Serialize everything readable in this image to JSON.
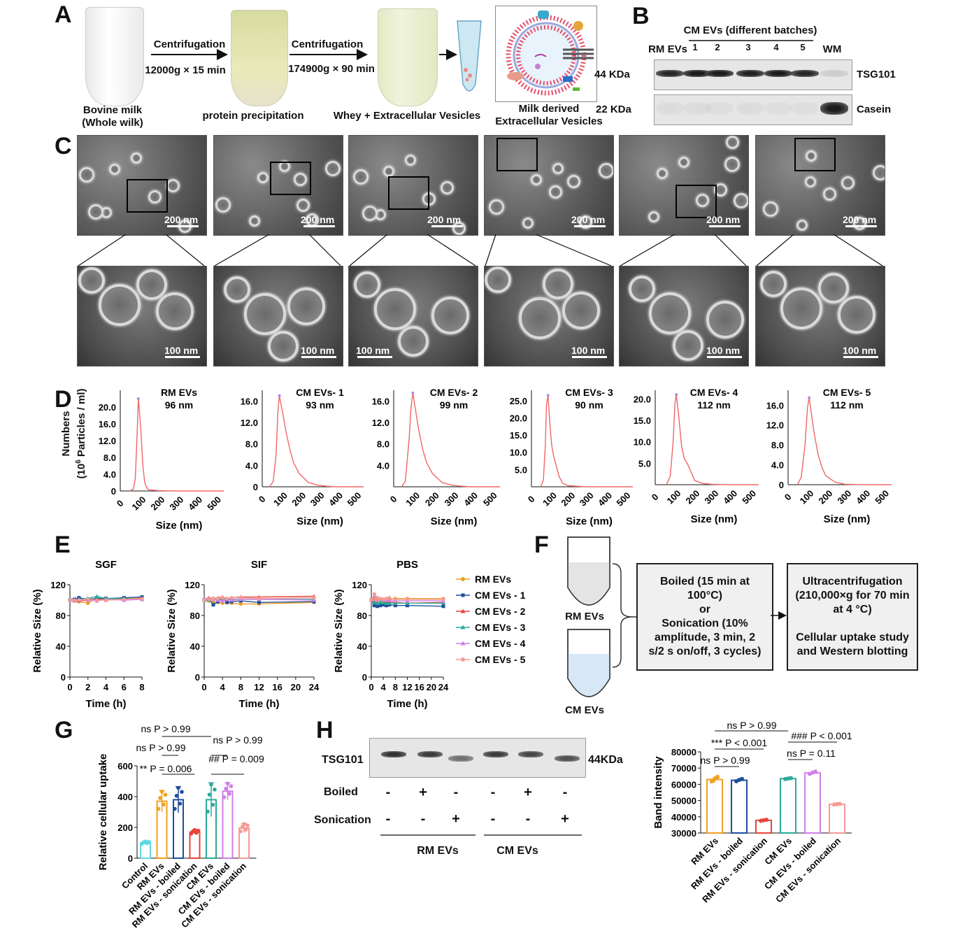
{
  "panels": {
    "A": "A",
    "B": "B",
    "C": "C",
    "D": "D",
    "E": "E",
    "F": "F",
    "G": "G",
    "H": "H"
  },
  "panel_a": {
    "step1_title": "Centrifugation",
    "step1_cond": "12000g × 15 min",
    "step2_title": "Centrifugation",
    "step2_cond": "174900g × 90 min",
    "tube1_label_1": "Bovine milk",
    "tube1_label_2": "(Whole wilk)",
    "tube2_label": "protein precipitation",
    "tube3_label": "Whey + Extracellular  Vesicles",
    "ev_label_1": "Milk derived",
    "ev_label_2": "Extracellular  Vesicles"
  },
  "panel_b": {
    "header": "CM EVs (different batches)",
    "lanes": [
      "RM EVs",
      "1",
      "2",
      "3",
      "4",
      "5",
      "WM"
    ],
    "rows": [
      {
        "kda": "44 KDa",
        "protein": "TSG101",
        "intensity": [
          0.9,
          0.95,
          0.95,
          0.92,
          0.95,
          0.9,
          0.12
        ]
      },
      {
        "kda": "22 KDa",
        "protein": "Casein",
        "intensity": [
          0.05,
          0.05,
          0.04,
          0.05,
          0.04,
          0.04,
          0.95
        ]
      }
    ]
  },
  "panel_c": {
    "scale_top": "200 nm",
    "scale_zoom": "100 nm"
  },
  "panel_d": {
    "ylabel": "Numbers (10⁶ Particles / ml)",
    "ylabel_1": "Numbers",
    "ylabel_2": "(10",
    "ylabel_sup": "6",
    "ylabel_3": " Particles / ml)",
    "xlabel": "Size (nm)",
    "xticks": [
      "0",
      "100",
      "200",
      "300",
      "400",
      "500"
    ]
  },
  "panel_e_titles": [
    "SGF",
    "SIF",
    "PBS"
  ],
  "panel_e_ylabel": "Relative Size (%)",
  "panel_e_xlabel": "Time (h)",
  "panel_f": {
    "tube1": "RM EVs",
    "tube2": "CM EVs",
    "box1": "Boiled (15 min at\n100°C)\nor\nSonication (10%\namplitude, 3 min, 2\ns/2 s on/off, 3 cycles)",
    "box2": "Ultracentrifugation\n(210,000×g for 70 min\nat 4 °C)\n\nCellular uptake study\nand Western blotting"
  },
  "panel_g_annotations": [
    {
      "label": "ns P > 0.99"
    },
    {
      "label": "ns P > 0.99"
    },
    {
      "label": "ns P > 0.99"
    },
    {
      "label": "** P = 0.006"
    },
    {
      "label": "## P = 0.009"
    }
  ],
  "panel_h": {
    "protein": "TSG101",
    "kda": "44KDa",
    "row1_label": "Boiled",
    "row2_label": "Sonication",
    "boiled": [
      "-",
      "+",
      "-",
      "-",
      "+",
      "-"
    ],
    "sonication": [
      "-",
      "-",
      "+",
      "-",
      "-",
      "+"
    ],
    "group1": "RM EVs",
    "group2": "CM EVs",
    "band_intensity_rel": [
      0.85,
      0.8,
      0.55,
      0.8,
      0.75,
      0.7
    ],
    "annotations": [
      {
        "label": "ns P > 0.99"
      },
      {
        "label": "*** P < 0.001"
      },
      {
        "label": "ns P > 0.99"
      },
      {
        "label": "### P < 0.001"
      },
      {
        "label": "ns P = 0.11"
      }
    ]
  },
  "chart_data": [
    {
      "type": "line",
      "panel": "D",
      "name": "RM EVs",
      "title": "RM EVs",
      "peak_label": "96 nm",
      "xlabel": "Size (nm)",
      "ylabel": "Numbers (10^6 Particles / ml)",
      "xlim": [
        0,
        550
      ],
      "ylim": [
        0,
        24
      ],
      "yticks": [
        "0",
        "4.0",
        "8.0",
        "12.0",
        "16.0",
        "20.0"
      ],
      "ytick_values": [
        0,
        4,
        8,
        12,
        16,
        20
      ],
      "x": [
        50,
        70,
        80,
        90,
        96,
        100,
        110,
        120,
        130,
        140,
        150,
        200,
        300,
        400,
        500,
        550
      ],
      "y": [
        0,
        0.5,
        3,
        14,
        22,
        20,
        14,
        6,
        2,
        0.8,
        0.3,
        0.1,
        0,
        0,
        0,
        0
      ]
    },
    {
      "type": "line",
      "panel": "D",
      "name": "CM EVs- 1",
      "title": "CM EVs- 1",
      "peak_label": "93 nm",
      "xlabel": "Size (nm)",
      "ylabel": "Numbers (10^6 Particles / ml)",
      "xlim": [
        0,
        550
      ],
      "ylim": [
        0,
        18
      ],
      "yticks": [
        "0",
        "4.0",
        "8.0",
        "12.0",
        "16.0"
      ],
      "ytick_values": [
        0,
        4,
        8,
        12,
        16
      ],
      "x": [
        40,
        60,
        75,
        85,
        93,
        110,
        130,
        150,
        170,
        200,
        250,
        300,
        350,
        400,
        500,
        550
      ],
      "y": [
        0,
        1,
        6,
        14,
        17,
        14,
        10,
        7,
        4.5,
        2.5,
        0.8,
        0.3,
        0.1,
        0,
        0,
        0
      ]
    },
    {
      "type": "line",
      "panel": "D",
      "name": "CM EVs- 2",
      "title": "CM EVs- 2",
      "peak_label": "99 nm",
      "xlabel": "Size (nm)",
      "ylabel": "Numbers (10^6 Particles / ml)",
      "xlim": [
        0,
        550
      ],
      "ylim": [
        0,
        18
      ],
      "yticks": [
        "4.0",
        "8.0",
        "12.0",
        "16.0"
      ],
      "ytick_values": [
        4,
        8,
        12,
        16
      ],
      "x": [
        40,
        60,
        80,
        90,
        99,
        110,
        130,
        150,
        170,
        200,
        250,
        300,
        350,
        400,
        500,
        550
      ],
      "y": [
        0,
        1,
        9,
        15,
        17.5,
        15,
        10.5,
        7,
        4.5,
        2.5,
        0.8,
        0.3,
        0.1,
        0,
        0,
        0
      ]
    },
    {
      "type": "line",
      "panel": "D",
      "name": "CM EVs- 3",
      "title": "CM EVs- 3",
      "peak_label": "90 nm",
      "xlabel": "Size (nm)",
      "ylabel": "Numbers (10^6 Particles / ml)",
      "xlim": [
        0,
        550
      ],
      "ylim": [
        0,
        28
      ],
      "yticks": [
        "5.0",
        "10.0",
        "15.0",
        "20.0",
        "25.0"
      ],
      "ytick_values": [
        5,
        10,
        15,
        20,
        25
      ],
      "x": [
        50,
        65,
        75,
        82,
        90,
        100,
        110,
        120,
        130,
        140,
        150,
        170,
        200,
        300,
        400,
        550
      ],
      "y": [
        0,
        2,
        12,
        24,
        26.5,
        18,
        12,
        9,
        7,
        5,
        3,
        1,
        0.3,
        0,
        0,
        0
      ]
    },
    {
      "type": "line",
      "panel": "D",
      "name": "CM EVs- 4",
      "title": "CM EVs- 4",
      "peak_label": "112 nm",
      "xlabel": "Size (nm)",
      "ylabel": "Numbers (10^6 Particles / ml)",
      "xlim": [
        0,
        550
      ],
      "ylim": [
        0,
        22
      ],
      "yticks": [
        "5.0",
        "10.0",
        "15.0",
        "20.0"
      ],
      "ytick_values": [
        5,
        10,
        15,
        20
      ],
      "x": [
        60,
        80,
        95,
        105,
        112,
        125,
        140,
        155,
        170,
        190,
        210,
        250,
        300,
        400,
        550
      ],
      "y": [
        0,
        2,
        10,
        19,
        21,
        16,
        9,
        6,
        5,
        3,
        1,
        0.3,
        0.1,
        0,
        0
      ]
    },
    {
      "type": "line",
      "panel": "D",
      "name": "CM EVs- 5",
      "title": "CM EVs- 5",
      "peak_label": "112 nm",
      "xlabel": "Size (nm)",
      "ylabel": "Numbers (10^6 Particles / ml)",
      "xlim": [
        0,
        550
      ],
      "ylim": [
        0,
        19
      ],
      "yticks": [
        "0",
        "4.0",
        "8.0",
        "12.0",
        "16.0"
      ],
      "ytick_values": [
        0,
        4,
        8,
        12,
        16
      ],
      "x": [
        50,
        70,
        90,
        103,
        112,
        125,
        140,
        160,
        180,
        200,
        250,
        300,
        400,
        550
      ],
      "y": [
        0,
        1.5,
        8,
        15.5,
        17.5,
        14,
        10,
        6,
        3.5,
        1.8,
        0.5,
        0.1,
        0,
        0
      ]
    },
    {
      "type": "line",
      "panel": "E",
      "title": "SGF",
      "xlabel": "Time (h)",
      "ylabel": "Relative Size (%)",
      "xlim": [
        0,
        8
      ],
      "ylim": [
        0,
        120
      ],
      "xticks": [
        0,
        2,
        4,
        6,
        8
      ],
      "yticks": [
        0,
        40,
        80,
        120
      ],
      "grid": false,
      "x": [
        0,
        0.5,
        1,
        2,
        3,
        4,
        6,
        8
      ],
      "series": [
        {
          "name": "RM EVs",
          "values": [
            100,
            99,
            98,
            96,
            103,
            101,
            102,
            103
          ]
        },
        {
          "name": "CM EVs - 1",
          "values": [
            100,
            101,
            103,
            101,
            102,
            102,
            103,
            104
          ]
        },
        {
          "name": "CM EVs - 2",
          "values": [
            100,
            100,
            99,
            100,
            101,
            100,
            101,
            102
          ]
        },
        {
          "name": "CM EVs - 3",
          "values": [
            100,
            100,
            101,
            102,
            105,
            102,
            102,
            101
          ]
        },
        {
          "name": "CM EVs - 4",
          "values": [
            100,
            99,
            101,
            100,
            99,
            101,
            100,
            101
          ]
        },
        {
          "name": "CM EVs - 5",
          "values": [
            100,
            100,
            100,
            101,
            100,
            100,
            101,
            102
          ]
        }
      ]
    },
    {
      "type": "line",
      "panel": "E",
      "title": "SIF",
      "xlabel": "Time (h)",
      "ylabel": "Relative Size (%)",
      "xlim": [
        0,
        24
      ],
      "ylim": [
        0,
        120
      ],
      "xticks": [
        0,
        4,
        8,
        12,
        16,
        20,
        24
      ],
      "yticks": [
        0,
        40,
        80,
        120
      ],
      "grid": false,
      "x": [
        0,
        1,
        2,
        3,
        4,
        5,
        6,
        8,
        12,
        24
      ],
      "series": [
        {
          "name": "RM EVs",
          "values": [
            100,
            99,
            98,
            97,
            96,
            97,
            96,
            95,
            95,
            97
          ]
        },
        {
          "name": "CM EVs - 1",
          "values": [
            100,
            101,
            94,
            98,
            102,
            97,
            98,
            99,
            97,
            98
          ]
        },
        {
          "name": "CM EVs - 2",
          "values": [
            100,
            103,
            102,
            103,
            104,
            102,
            103,
            104,
            104,
            105
          ]
        },
        {
          "name": "CM EVs - 3",
          "values": [
            100,
            100,
            103,
            100,
            102,
            102,
            101,
            101,
            101,
            101
          ]
        },
        {
          "name": "CM EVs - 4",
          "values": [
            100,
            102,
            101,
            100,
            99,
            101,
            100,
            101,
            101,
            100
          ]
        },
        {
          "name": "CM EVs - 5",
          "values": [
            100,
            101,
            102,
            102,
            103,
            102,
            103,
            103,
            102,
            103
          ]
        }
      ]
    },
    {
      "type": "line",
      "panel": "E",
      "title": "PBS",
      "xlabel": "Time (h)",
      "ylabel": "Relative Size (%)",
      "xlim": [
        0,
        24
      ],
      "ylim": [
        0,
        120
      ],
      "xticks": [
        0,
        4,
        8,
        12,
        16,
        20,
        24
      ],
      "yticks": [
        0,
        40,
        80,
        120
      ],
      "grid": false,
      "x": [
        0,
        1,
        2,
        3,
        4,
        5,
        6,
        8,
        12,
        24
      ],
      "series": [
        {
          "name": "RM EVs",
          "values": [
            100,
            102,
            101,
            100,
            101,
            102,
            101,
            102,
            102,
            102
          ]
        },
        {
          "name": "CM EVs - 1",
          "values": [
            100,
            93,
            92,
            93,
            94,
            93,
            94,
            93,
            93,
            92
          ]
        },
        {
          "name": "CM EVs - 2",
          "values": [
            100,
            98,
            97,
            97,
            98,
            97,
            98,
            97,
            96,
            97
          ]
        },
        {
          "name": "CM EVs - 3",
          "values": [
            100,
            97,
            96,
            97,
            97,
            96,
            96,
            96,
            96,
            96
          ]
        },
        {
          "name": "CM EVs - 4",
          "values": [
            100,
            105,
            101,
            102,
            100,
            101,
            100,
            99,
            99,
            99
          ]
        },
        {
          "name": "CM EVs - 5",
          "values": [
            100,
            108,
            103,
            102,
            101,
            102,
            103,
            101,
            101,
            101
          ]
        }
      ]
    },
    {
      "type": "bar",
      "panel": "G",
      "ylabel": "Relative cellular uptake",
      "ylim": [
        0,
        600
      ],
      "yticks": [
        0,
        200,
        400,
        600
      ],
      "categories": [
        "Control",
        "RM EVs",
        "RM EVs - boiled",
        "RM EVs - sonication",
        "CM EVs",
        "CM EVs - boiled",
        "CM EVs - sonication"
      ],
      "values": [
        100,
        370,
        380,
        170,
        380,
        435,
        195
      ],
      "errors": [
        10,
        70,
        85,
        15,
        110,
        55,
        30
      ]
    },
    {
      "type": "bar",
      "panel": "H",
      "ylabel": "Band intensity",
      "ylim": [
        30000,
        80000
      ],
      "yticks": [
        30000,
        40000,
        50000,
        60000,
        70000,
        80000
      ],
      "categories": [
        "RM EVs",
        "RM EVs - boiled",
        "RM EVs - sonication",
        "CM EVs",
        "CM EVs - boiled",
        "CM EVs - sonication"
      ],
      "values": [
        63000,
        62500,
        37800,
        63500,
        67000,
        47700
      ],
      "errors": [
        2000,
        1000,
        400,
        400,
        1000,
        300
      ]
    }
  ],
  "colors": {
    "RM EVs": "#f0a020",
    "CM EVs - 1": "#1f4e9c",
    "CM EVs - 2": "#e8443a",
    "CM EVs - 3": "#2aaa9a",
    "CM EVs - 4": "#d07ee8",
    "CM EVs - 5": "#f59a94",
    "Control": "#5fd8e0",
    "nta_line": "#f06666"
  }
}
